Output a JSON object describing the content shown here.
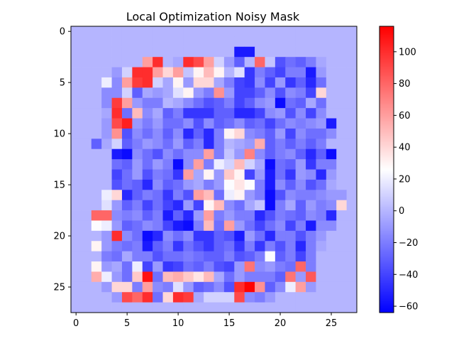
{
  "chart_data": {
    "type": "heatmap",
    "title": "Local Optimization Noisy Mask",
    "xlabel": "",
    "ylabel": "",
    "rows": 28,
    "cols": 28,
    "x_ticks": [
      0,
      5,
      10,
      15,
      20,
      25
    ],
    "y_ticks": [
      0,
      5,
      10,
      15,
      20,
      25
    ],
    "colormap": "bwr",
    "colorbar": {
      "vmin": -64,
      "vmax": 116,
      "ticks": [
        -60,
        -40,
        -20,
        0,
        20,
        40,
        60,
        80,
        100
      ]
    },
    "background_value": 0,
    "colors": {
      "low": "#0000ff",
      "mid": "#ffffff",
      "high": "#ff0000"
    },
    "values": [
      [
        0,
        0,
        0,
        0,
        0,
        0,
        0,
        0,
        0,
        0,
        0,
        0,
        0,
        0,
        0,
        0,
        0,
        0,
        0,
        0,
        0,
        0,
        0,
        0,
        0,
        0,
        0,
        0
      ],
      [
        0,
        0,
        0,
        0,
        0,
        0,
        0,
        0,
        0,
        0,
        0,
        0,
        0,
        0,
        0,
        0,
        0,
        0,
        0,
        0,
        0,
        0,
        0,
        0,
        0,
        0,
        0,
        0
      ],
      [
        0,
        0,
        0,
        0,
        0,
        0,
        0,
        0,
        0,
        0,
        0,
        0,
        0,
        0,
        0,
        0,
        -55,
        -55,
        0,
        0,
        0,
        0,
        0,
        0,
        0,
        0,
        0,
        0
      ],
      [
        0,
        0,
        0,
        0,
        0,
        0,
        0,
        60,
        100,
        0,
        -5,
        100,
        90,
        60,
        10,
        -10,
        -30,
        0,
        80,
        5,
        -35,
        -25,
        -30,
        -20,
        -5,
        0,
        0,
        0
      ],
      [
        0,
        0,
        0,
        0,
        -10,
        10,
        100,
        100,
        60,
        40,
        60,
        5,
        30,
        50,
        30,
        0,
        15,
        -45,
        -20,
        -30,
        -40,
        -20,
        -20,
        -55,
        -10,
        0,
        0,
        0
      ],
      [
        0,
        0,
        0,
        20,
        -15,
        60,
        95,
        100,
        10,
        -5,
        30,
        -10,
        40,
        40,
        -5,
        -20,
        -40,
        -45,
        -15,
        -40,
        -10,
        -45,
        -30,
        -50,
        -25,
        0,
        0,
        0
      ],
      [
        0,
        0,
        0,
        -15,
        -15,
        10,
        -30,
        -5,
        -10,
        -5,
        15,
        30,
        -10,
        -20,
        65,
        -10,
        -40,
        -40,
        -30,
        -15,
        -35,
        -15,
        -20,
        -40,
        40,
        0,
        0,
        0
      ],
      [
        0,
        0,
        0,
        -15,
        95,
        60,
        -10,
        -20,
        -20,
        0,
        -5,
        -15,
        -25,
        -35,
        -30,
        -20,
        -40,
        -30,
        -15,
        -10,
        -60,
        -25,
        -30,
        -5,
        -25,
        0,
        0,
        0
      ],
      [
        0,
        0,
        0,
        -5,
        100,
        -25,
        50,
        -15,
        -5,
        -30,
        -20,
        -45,
        -45,
        -45,
        -30,
        -30,
        -50,
        -50,
        -40,
        -15,
        -10,
        -35,
        -15,
        -40,
        -15,
        0,
        0,
        0
      ],
      [
        0,
        0,
        0,
        -10,
        90,
        105,
        -10,
        -20,
        -10,
        -25,
        -25,
        -15,
        -35,
        -15,
        -30,
        -25,
        -15,
        -30,
        -25,
        -40,
        -25,
        -15,
        -20,
        -15,
        -10,
        -55,
        0,
        0
      ],
      [
        0,
        0,
        0,
        -10,
        65,
        -35,
        -15,
        -25,
        -15,
        -30,
        -15,
        -50,
        -30,
        -50,
        -20,
        30,
        40,
        -15,
        -20,
        -30,
        -10,
        -40,
        -15,
        -25,
        -25,
        -15,
        0,
        0
      ],
      [
        0,
        0,
        -30,
        -5,
        10,
        -30,
        -20,
        -10,
        -15,
        -25,
        -10,
        -30,
        -20,
        -50,
        -20,
        0,
        -5,
        -10,
        55,
        -30,
        -20,
        -30,
        -20,
        -30,
        -20,
        0,
        0,
        0
      ],
      [
        0,
        0,
        0,
        0,
        -55,
        -60,
        -15,
        -25,
        -35,
        -15,
        -25,
        -15,
        -15,
        60,
        -20,
        5,
        -10,
        70,
        -15,
        -30,
        -20,
        -15,
        -30,
        -50,
        -30,
        -60,
        0,
        0
      ],
      [
        0,
        0,
        0,
        0,
        -25,
        -30,
        -10,
        -25,
        -10,
        -20,
        -60,
        -15,
        60,
        -20,
        20,
        10,
        50,
        10,
        -5,
        -60,
        -25,
        -30,
        -10,
        -45,
        -20,
        -20,
        0,
        0
      ],
      [
        0,
        0,
        0,
        0,
        -40,
        -25,
        -10,
        -35,
        -20,
        -25,
        -45,
        60,
        -5,
        30,
        -10,
        45,
        30,
        -40,
        -10,
        -55,
        -25,
        -45,
        -10,
        -15,
        -50,
        -10,
        0,
        0
      ],
      [
        0,
        0,
        0,
        0,
        -35,
        -25,
        -30,
        -50,
        -15,
        -30,
        -25,
        -10,
        -5,
        -20,
        -10,
        25,
        35,
        25,
        -20,
        -55,
        -15,
        -30,
        -15,
        -35,
        -25,
        -5,
        0,
        0
      ],
      [
        0,
        0,
        0,
        20,
        40,
        -50,
        -30,
        -20,
        -25,
        -45,
        -20,
        -35,
        60,
        50,
        -25,
        20,
        30,
        -10,
        -20,
        -60,
        -35,
        -15,
        -20,
        -20,
        -15,
        -10,
        -10,
        0
      ],
      [
        0,
        0,
        0,
        15,
        -10,
        -30,
        -20,
        -40,
        -25,
        -40,
        -50,
        -10,
        -40,
        30,
        50,
        -15,
        -25,
        -5,
        5,
        -60,
        -20,
        -5,
        -30,
        -10,
        -20,
        -15,
        40,
        0
      ],
      [
        0,
        0,
        80,
        80,
        -15,
        -20,
        -15,
        -30,
        -20,
        -55,
        -30,
        -50,
        -10,
        60,
        -20,
        -10,
        -20,
        -20,
        -50,
        -35,
        -20,
        -25,
        -30,
        -15,
        -20,
        -50,
        0,
        0
      ],
      [
        0,
        0,
        25,
        20,
        -10,
        -30,
        -25,
        -15,
        -20,
        -40,
        -55,
        -60,
        -20,
        50,
        -25,
        60,
        -10,
        -25,
        -40,
        -25,
        -15,
        -40,
        -20,
        -55,
        -15,
        -15,
        0,
        0
      ],
      [
        0,
        0,
        0,
        -10,
        100,
        -15,
        -25,
        -60,
        -50,
        -15,
        -25,
        -15,
        -45,
        -45,
        -30,
        -35,
        -55,
        -10,
        -25,
        -50,
        -20,
        -20,
        -35,
        -20,
        -10,
        0,
        0,
        0
      ],
      [
        0,
        0,
        30,
        -10,
        -20,
        -25,
        -20,
        -55,
        -30,
        -20,
        -45,
        -25,
        -35,
        -45,
        -30,
        -25,
        -45,
        -20,
        -45,
        -20,
        -35,
        -20,
        -50,
        -20,
        -5,
        0,
        0,
        0
      ],
      [
        0,
        0,
        0,
        -20,
        -25,
        -5,
        -20,
        -20,
        -35,
        -25,
        -25,
        -20,
        -25,
        -30,
        -30,
        -20,
        -35,
        -30,
        -20,
        25,
        -30,
        -20,
        -40,
        -20,
        0,
        0,
        0,
        0
      ],
      [
        0,
        0,
        30,
        -10,
        -5,
        -25,
        20,
        -40,
        -10,
        -45,
        -40,
        -25,
        -30,
        -20,
        -35,
        -40,
        -10,
        75,
        -15,
        -10,
        -20,
        -25,
        80,
        -20,
        0,
        0,
        0,
        0
      ],
      [
        0,
        0,
        55,
        20,
        -10,
        -25,
        45,
        110,
        -25,
        50,
        55,
        45,
        35,
        50,
        -5,
        -25,
        -10,
        -20,
        -20,
        -20,
        -30,
        75,
        -10,
        85,
        0,
        0,
        0,
        0
      ],
      [
        0,
        0,
        0,
        -10,
        40,
        40,
        -20,
        60,
        -15,
        -20,
        15,
        -10,
        -30,
        -25,
        -15,
        -35,
        100,
        115,
        65,
        -30,
        -15,
        20,
        60,
        -10,
        0,
        0,
        0,
        0
      ],
      [
        0,
        0,
        0,
        0,
        -10,
        90,
        80,
        100,
        -25,
        40,
        100,
        95,
        -5,
        10,
        10,
        10,
        90,
        -15,
        -20,
        -10,
        0,
        0,
        0,
        0,
        0,
        0,
        0,
        0
      ],
      [
        0,
        0,
        0,
        0,
        0,
        0,
        0,
        0,
        0,
        0,
        0,
        0,
        0,
        0,
        0,
        0,
        0,
        0,
        0,
        0,
        0,
        0,
        0,
        0,
        0,
        0,
        0,
        0
      ]
    ]
  }
}
